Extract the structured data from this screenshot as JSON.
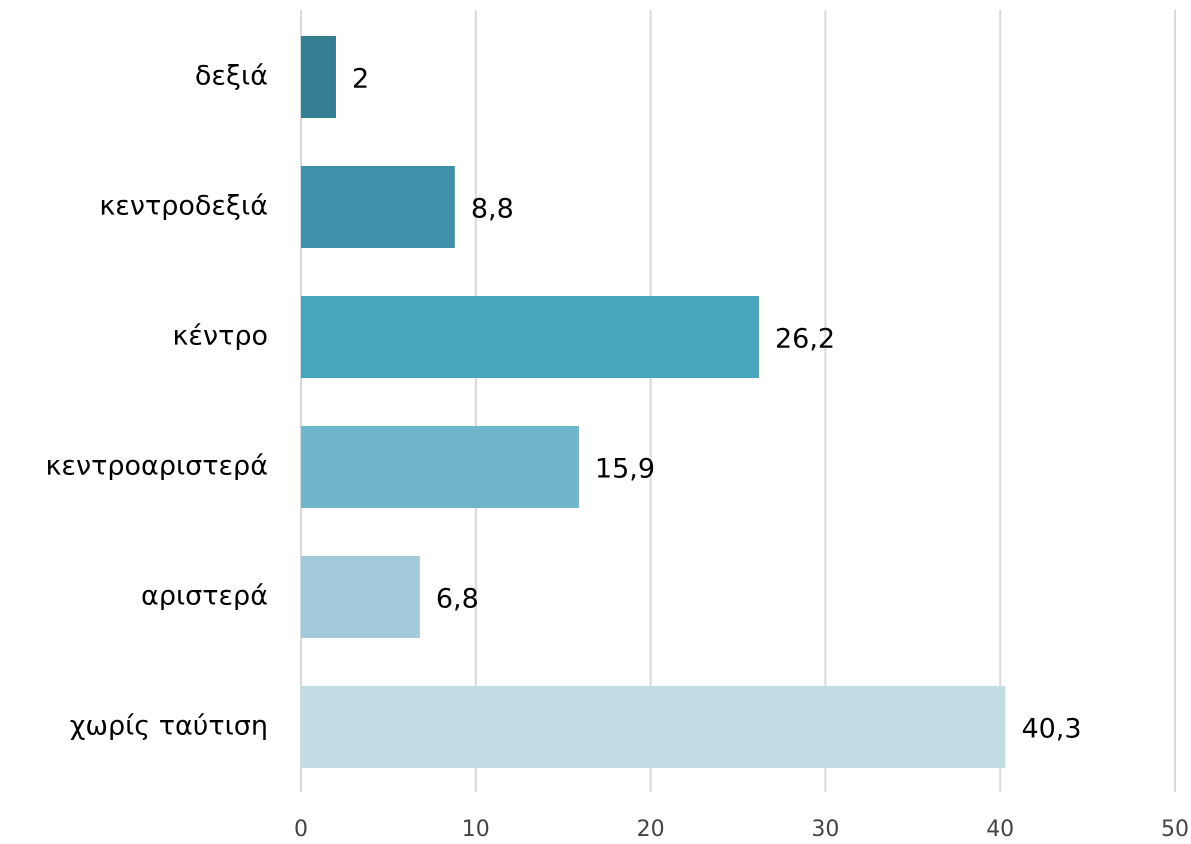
{
  "chart_data": {
    "type": "bar",
    "orientation": "horizontal",
    "categories": [
      "δεξιά",
      "κεντροδεξιά",
      "κέντρο",
      "κεντροαριστερά",
      "αριστερά",
      "χωρίς ταύτιση"
    ],
    "values": [
      2,
      8.8,
      26.2,
      15.9,
      6.8,
      40.3
    ],
    "value_labels": [
      "2",
      "8,8",
      "26,2",
      "15,9",
      "6,8",
      "40,3"
    ],
    "colors": [
      "#347d93",
      "#4090a9",
      "#47a5bd",
      "#70b6cb",
      "#a3cada",
      "#c3dde5"
    ],
    "xlim": [
      0,
      50
    ],
    "xticks": [
      0,
      10,
      20,
      30,
      40,
      50
    ],
    "grid": true
  }
}
